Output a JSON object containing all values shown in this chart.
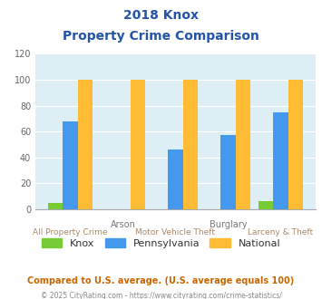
{
  "title_line1": "2018 Knox",
  "title_line2": "Property Crime Comparison",
  "categories": [
    "All Property Crime",
    "Arson",
    "Motor Vehicle Theft",
    "Burglary",
    "Larceny & Theft"
  ],
  "knox": [
    5,
    0,
    0,
    0,
    6
  ],
  "pennsylvania": [
    68,
    0,
    46,
    57,
    75
  ],
  "national": [
    100,
    100,
    100,
    100,
    100
  ],
  "knox_color": "#77cc33",
  "pennsylvania_color": "#4499ee",
  "national_color": "#ffbb33",
  "title_color": "#2255aa",
  "xlabel_top_color": "#777777",
  "xlabel_bottom_color": "#aa8866",
  "ylim": [
    0,
    120
  ],
  "yticks": [
    0,
    20,
    40,
    60,
    80,
    100,
    120
  ],
  "background_color": "#ddeef5",
  "legend_labels": [
    "Knox",
    "Pennsylvania",
    "National"
  ],
  "footer1": "Compared to U.S. average. (U.S. average equals 100)",
  "footer2": "© 2025 CityRating.com - https://www.cityrating.com/crime-statistics/",
  "footer1_color": "#cc6600",
  "footer2_color": "#888888"
}
